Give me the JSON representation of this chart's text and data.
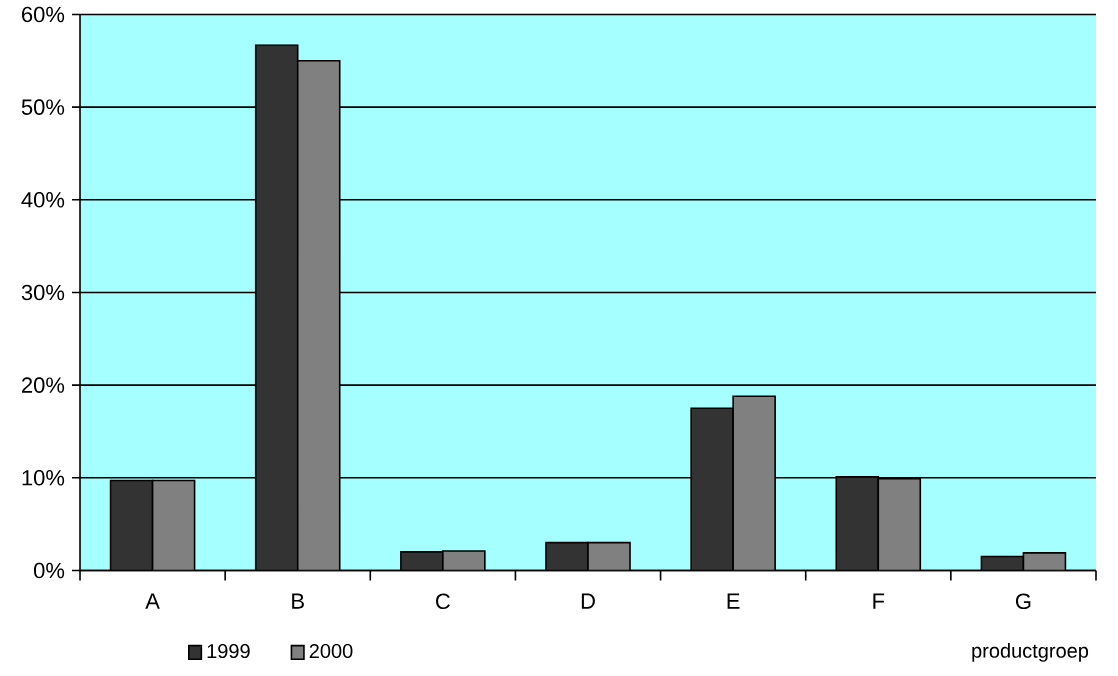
{
  "chart_data": {
    "type": "bar",
    "xlabel": "productgroep",
    "categories": [
      "A",
      "B",
      "C",
      "D",
      "E",
      "F",
      "G"
    ],
    "series": [
      {
        "name": "1999",
        "color": "#333333",
        "values": [
          9.7,
          56.7,
          2.0,
          3.0,
          17.5,
          10.1,
          1.5
        ]
      },
      {
        "name": "2000",
        "color": "#808080",
        "values": [
          9.7,
          55.0,
          2.1,
          3.0,
          18.8,
          9.9,
          1.9
        ]
      }
    ],
    "ylim": [
      0,
      60
    ],
    "yticks": [
      {
        "value": 0,
        "label": "0%"
      },
      {
        "value": 10,
        "label": "10%"
      },
      {
        "value": 20,
        "label": "20%"
      },
      {
        "value": 30,
        "label": "30%"
      },
      {
        "value": 40,
        "label": "40%"
      },
      {
        "value": 50,
        "label": "50%"
      },
      {
        "value": 60,
        "label": "60%"
      }
    ],
    "grid": "y",
    "legend": "bottom"
  }
}
